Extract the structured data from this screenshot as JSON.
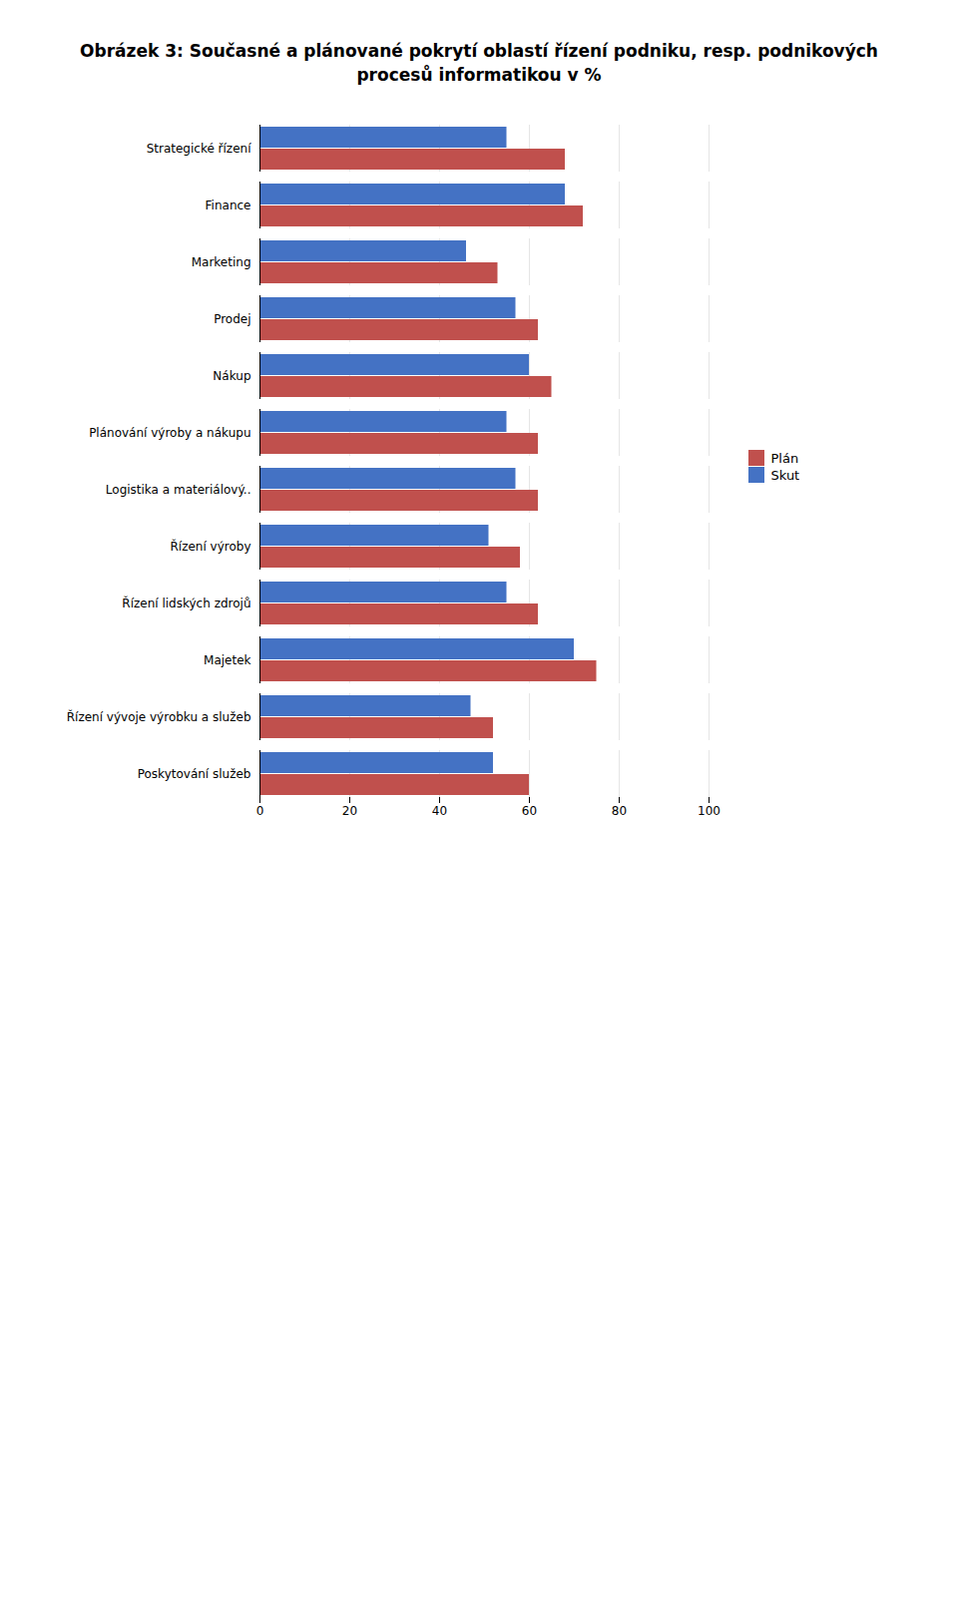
{
  "chart_data": {
    "type": "bar",
    "orientation": "horizontal",
    "title": "Obrázek 3: Současné a plánované pokrytí oblastí řízení podniku, resp. podnikových procesů informatikou v %",
    "categories": [
      "Strategické řízení",
      "Finance",
      "Marketing",
      "Prodej",
      "Nákup",
      "Plánování výroby a nákupu",
      "Logistika a materiálový..",
      "Řízení výroby",
      "Řízení lidských zdrojů",
      "Majetek",
      "Řízení vývoje výrobku a služeb",
      "Poskytování služeb"
    ],
    "series": [
      {
        "name": "Plán",
        "color": "#C0504D",
        "values": [
          68,
          72,
          53,
          62,
          65,
          62,
          62,
          58,
          62,
          75,
          52,
          60
        ]
      },
      {
        "name": "Skut",
        "color": "#4472C4",
        "values": [
          55,
          68,
          46,
          57,
          60,
          55,
          57,
          51,
          55,
          70,
          47,
          52
        ]
      }
    ],
    "xlim": [
      0,
      100
    ],
    "xticks": [
      0,
      20,
      40,
      60,
      80,
      100
    ],
    "grid": true,
    "legend": "right"
  }
}
